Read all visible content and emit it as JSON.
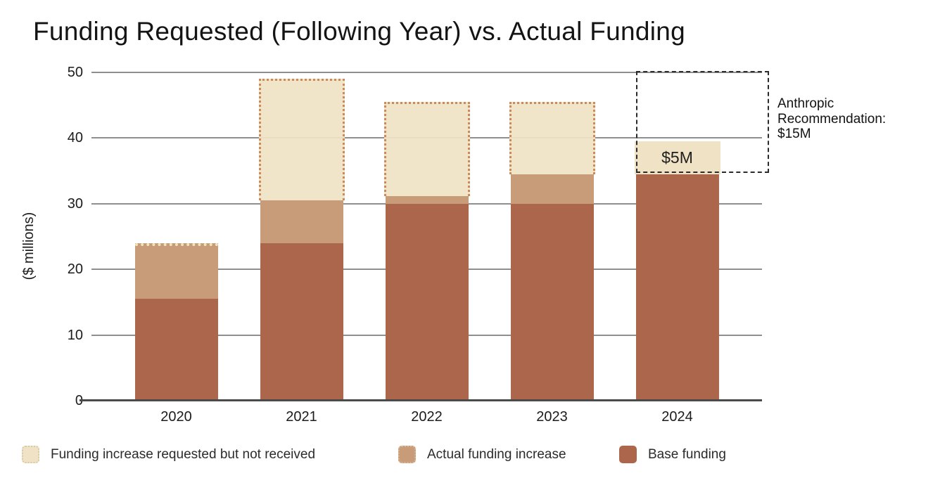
{
  "title": "Funding Requested (Following Year) vs. Actual Funding",
  "y_axis": {
    "label": "($ millions)",
    "ticks": [
      0,
      10,
      20,
      30,
      40,
      50
    ],
    "max": 50
  },
  "annotation": {
    "text": "Anthropic\nRecommendation:\n$15M"
  },
  "legend": {
    "items": [
      {
        "label": "Funding increase requested but not received",
        "color": "#F0E3C5"
      },
      {
        "label": "Actual funding increase",
        "color": "#C89B79"
      },
      {
        "label": "Base funding",
        "color": "#AC664C"
      }
    ]
  },
  "colors": {
    "requested_fill": "#F0E3C5",
    "requested_dot_border": "#CB8A5C",
    "actual_increase": "#C89B79",
    "base": "#AC664C",
    "gridline": "#8F8F8F",
    "axis": "#4A4A4A",
    "recommendation_box": "#2B2B2B",
    "text": "#1C1C1C"
  },
  "chart_data": {
    "type": "bar",
    "stacked": true,
    "title": "Funding Requested (Following Year) vs. Actual Funding",
    "xlabel": "",
    "ylabel": "($ millions)",
    "ylim": [
      0,
      50
    ],
    "grid": "horizontal",
    "legend_position": "bottom",
    "categories": [
      "2020",
      "2021",
      "2022",
      "2023",
      "2024"
    ],
    "series": [
      {
        "name": "Base funding",
        "color": "#AC664C",
        "values": [
          16,
          24,
          30,
          30,
          34.5
        ]
      },
      {
        "name": "Actual funding increase",
        "color": "#C89B79",
        "values": [
          8,
          6.5,
          1.2,
          4.5,
          0
        ]
      },
      {
        "name": "Funding increase requested but not received",
        "color": "#F0E3C5",
        "values": [
          0,
          18.5,
          14.3,
          11,
          5
        ]
      }
    ],
    "annotations": [
      {
        "type": "collapsed_requested_outline",
        "category": "2020"
      },
      {
        "type": "solid_requested_segment",
        "category": "2024",
        "label": "$5M"
      },
      {
        "type": "recommendation_box",
        "category": "2024",
        "from": 34.5,
        "to": 50,
        "label": "Anthropic Recommendation: $15M"
      }
    ]
  }
}
